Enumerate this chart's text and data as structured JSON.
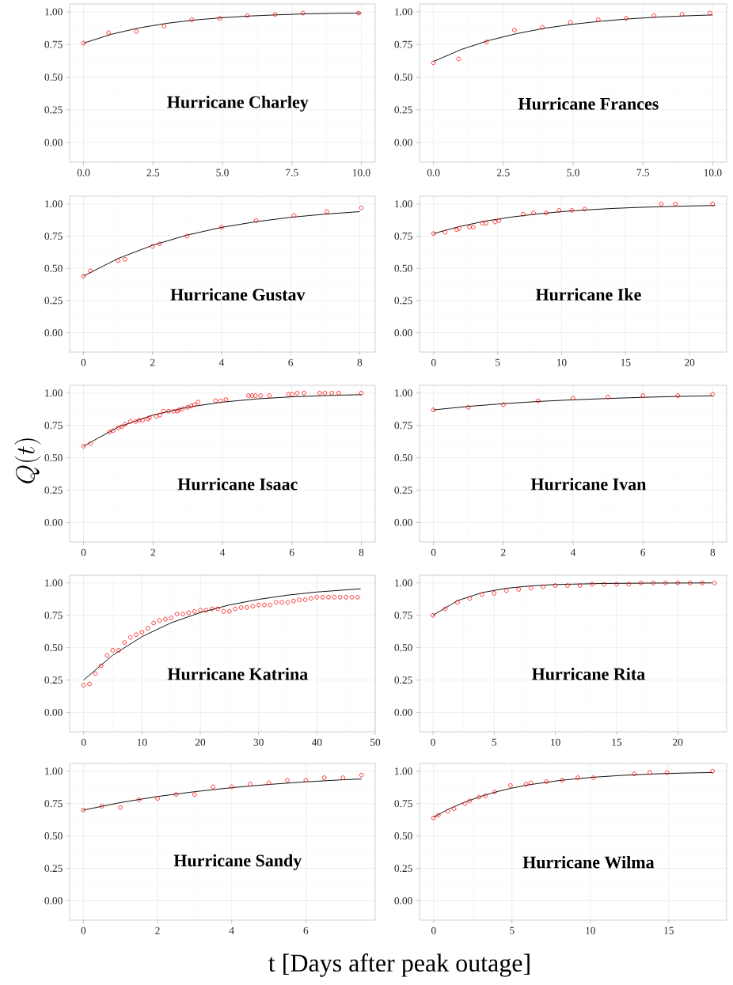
{
  "chart_data": [
    {
      "type": "scatter",
      "title": "Hurricane Charley",
      "grid": true,
      "marker": "circle",
      "xlim": [
        -0.5,
        10.5
      ],
      "ylim": [
        -0.15,
        1.06
      ],
      "xticks": [
        {
          "value": 0,
          "label": "0.0"
        },
        {
          "value": 2.5,
          "label": "2.5"
        },
        {
          "value": 5,
          "label": "5.0"
        },
        {
          "value": 7.5,
          "label": "7.5"
        },
        {
          "value": 10,
          "label": "10.0"
        }
      ],
      "yticks": [
        {
          "value": 0,
          "label": "0.00"
        },
        {
          "value": 0.25,
          "label": "0.25"
        },
        {
          "value": 0.5,
          "label": "0.50"
        },
        {
          "value": 0.75,
          "label": "0.75"
        },
        {
          "value": 1,
          "label": "1.00"
        }
      ],
      "series": [
        {
          "color": "#ff0000",
          "x": [
            0,
            0.9,
            1.9,
            2.9,
            3.9,
            4.9,
            5.9,
            6.9,
            7.9,
            9.9
          ],
          "values": [
            0.76,
            0.84,
            0.85,
            0.89,
            0.94,
            0.95,
            0.97,
            0.98,
            0.99,
            0.99
          ]
        },
        {
          "type": "line",
          "marker": "none",
          "color": "#000000",
          "x": [
            0,
            1,
            2,
            3,
            4,
            5,
            6,
            7,
            8,
            9,
            10
          ],
          "values": [
            0.76,
            0.828,
            0.877,
            0.912,
            0.937,
            0.955,
            0.968,
            0.977,
            0.984,
            0.988,
            0.99
          ]
        }
      ]
    },
    {
      "type": "scatter",
      "title": "Hurricane Frances",
      "grid": true,
      "marker": "circle",
      "xlim": [
        -0.5,
        10.5
      ],
      "ylim": [
        -0.15,
        1.06
      ],
      "xticks": [
        {
          "value": 0,
          "label": "0.0"
        },
        {
          "value": 2.5,
          "label": "2.5"
        },
        {
          "value": 5,
          "label": "5.0"
        },
        {
          "value": 7.5,
          "label": "7.5"
        },
        {
          "value": 10,
          "label": "10.0"
        }
      ],
      "yticks": [
        {
          "value": 0,
          "label": "0.00"
        },
        {
          "value": 0.25,
          "label": "0.25"
        },
        {
          "value": 0.5,
          "label": "0.50"
        },
        {
          "value": 0.75,
          "label": "0.75"
        },
        {
          "value": 1,
          "label": "1.00"
        }
      ],
      "series": [
        {
          "color": "#ff0000",
          "x": [
            0,
            0.9,
            1.9,
            2.9,
            3.9,
            4.9,
            5.9,
            6.9,
            7.9,
            8.9,
            9.9
          ],
          "values": [
            0.61,
            0.64,
            0.77,
            0.86,
            0.88,
            0.92,
            0.94,
            0.95,
            0.97,
            0.98,
            0.99
          ]
        },
        {
          "type": "line",
          "marker": "none",
          "color": "#000000",
          "x": [
            0,
            1,
            2,
            3,
            4,
            5,
            6,
            7,
            8,
            9,
            10
          ],
          "values": [
            0.62,
            0.712,
            0.782,
            0.834,
            0.875,
            0.905,
            0.928,
            0.946,
            0.959,
            0.969,
            0.976
          ]
        }
      ]
    },
    {
      "type": "scatter",
      "title": "Hurricane Gustav",
      "grid": true,
      "marker": "circle",
      "xlim": [
        -0.4,
        8.45
      ],
      "ylim": [
        -0.15,
        1.06
      ],
      "xticks": [
        {
          "value": 0,
          "label": "0"
        },
        {
          "value": 2,
          "label": "2"
        },
        {
          "value": 4,
          "label": "4"
        },
        {
          "value": 6,
          "label": "6"
        },
        {
          "value": 8,
          "label": "8"
        }
      ],
      "yticks": [
        {
          "value": 0,
          "label": "0.00"
        },
        {
          "value": 0.25,
          "label": "0.25"
        },
        {
          "value": 0.5,
          "label": "0.50"
        },
        {
          "value": 0.75,
          "label": "0.75"
        },
        {
          "value": 1,
          "label": "1.00"
        }
      ],
      "series": [
        {
          "color": "#ff0000",
          "x": [
            0,
            0.2,
            1.0,
            1.2,
            2.0,
            2.2,
            3.0,
            4.0,
            5.0,
            6.1,
            7.05,
            8.05
          ],
          "values": [
            0.44,
            0.48,
            0.56,
            0.57,
            0.67,
            0.69,
            0.75,
            0.82,
            0.87,
            0.91,
            0.94,
            0.97
          ]
        },
        {
          "type": "line",
          "marker": "none",
          "color": "#000000",
          "x": [
            0,
            1,
            2,
            3,
            4,
            5,
            6,
            7,
            8
          ],
          "values": [
            0.44,
            0.576,
            0.679,
            0.758,
            0.818,
            0.862,
            0.896,
            0.921,
            0.94
          ]
        }
      ]
    },
    {
      "type": "scatter",
      "title": "Hurricane Ike",
      "grid": true,
      "marker": "circle",
      "xlim": [
        -1.1,
        22.9
      ],
      "ylim": [
        -0.15,
        1.06
      ],
      "xticks": [
        {
          "value": 0,
          "label": "0"
        },
        {
          "value": 5,
          "label": "5"
        },
        {
          "value": 10,
          "label": "10"
        },
        {
          "value": 15,
          "label": "15"
        },
        {
          "value": 20,
          "label": "20"
        }
      ],
      "yticks": [
        {
          "value": 0,
          "label": "0.00"
        },
        {
          "value": 0.25,
          "label": "0.25"
        },
        {
          "value": 0.5,
          "label": "0.50"
        },
        {
          "value": 0.75,
          "label": "0.75"
        },
        {
          "value": 1,
          "label": "1.00"
        }
      ],
      "series": [
        {
          "color": "#ff0000",
          "x": [
            0,
            0.9,
            1.8,
            2.0,
            2.8,
            3.1,
            3.8,
            4.1,
            4.8,
            5.1,
            7.0,
            7.8,
            8.8,
            9.8,
            10.8,
            11.8,
            17.8,
            18.9,
            21.8
          ],
          "values": [
            0.77,
            0.78,
            0.8,
            0.81,
            0.82,
            0.82,
            0.85,
            0.85,
            0.86,
            0.87,
            0.92,
            0.93,
            0.93,
            0.95,
            0.95,
            0.96,
            1.0,
            1.0,
            1.0
          ]
        },
        {
          "type": "line",
          "marker": "none",
          "color": "#000000",
          "x": [
            0,
            2,
            4,
            6,
            8,
            10,
            12,
            14,
            16,
            18,
            20,
            22
          ],
          "values": [
            0.77,
            0.824,
            0.866,
            0.897,
            0.921,
            0.94,
            0.954,
            0.965,
            0.973,
            0.979,
            0.984,
            0.988
          ]
        }
      ]
    },
    {
      "type": "scatter",
      "title": "Hurricane Isaac",
      "ylabel": "Q(t)",
      "grid": true,
      "marker": "circle",
      "xlim": [
        -0.4,
        8.4
      ],
      "ylim": [
        -0.15,
        1.06
      ],
      "xticks": [
        {
          "value": 0,
          "label": "0"
        },
        {
          "value": 2,
          "label": "2"
        },
        {
          "value": 4,
          "label": "4"
        },
        {
          "value": 6,
          "label": "6"
        },
        {
          "value": 8,
          "label": "8"
        }
      ],
      "yticks": [
        {
          "value": 0,
          "label": "0.00"
        },
        {
          "value": 0.25,
          "label": "0.25"
        },
        {
          "value": 0.5,
          "label": "0.50"
        },
        {
          "value": 0.75,
          "label": "0.75"
        },
        {
          "value": 1,
          "label": "1.00"
        }
      ],
      "series": [
        {
          "color": "#ff0000",
          "x": [
            0,
            0.2,
            0.75,
            0.85,
            1.0,
            1.1,
            1.2,
            1.35,
            1.5,
            1.6,
            1.7,
            1.85,
            1.9,
            2.1,
            2.2,
            2.3,
            2.45,
            2.6,
            2.7,
            2.75,
            2.85,
            3.0,
            3.1,
            3.2,
            3.3,
            3.8,
            3.95,
            4.1,
            4.75,
            4.85,
            4.95,
            5.1,
            5.35,
            5.9,
            6.0,
            6.15,
            6.35,
            6.8,
            6.95,
            7.15,
            7.35,
            8.0
          ],
          "values": [
            0.59,
            0.61,
            0.7,
            0.71,
            0.73,
            0.74,
            0.76,
            0.78,
            0.78,
            0.79,
            0.79,
            0.8,
            0.81,
            0.82,
            0.83,
            0.86,
            0.86,
            0.86,
            0.86,
            0.87,
            0.88,
            0.89,
            0.9,
            0.91,
            0.93,
            0.94,
            0.94,
            0.95,
            0.98,
            0.98,
            0.98,
            0.98,
            0.98,
            0.99,
            0.99,
            1.0,
            1.0,
            1.0,
            1.0,
            1.0,
            1.0,
            1.0
          ]
        },
        {
          "type": "line",
          "marker": "none",
          "color": "#000000",
          "x": [
            0,
            1,
            2,
            3,
            4,
            5,
            6,
            7,
            8
          ],
          "values": [
            0.59,
            0.737,
            0.83,
            0.891,
            0.93,
            0.955,
            0.971,
            0.981,
            0.988
          ]
        }
      ]
    },
    {
      "type": "scatter",
      "title": "Hurricane Ivan",
      "grid": true,
      "marker": "circle",
      "xlim": [
        -0.4,
        8.4
      ],
      "ylim": [
        -0.15,
        1.06
      ],
      "xticks": [
        {
          "value": 0,
          "label": "0"
        },
        {
          "value": 2,
          "label": "2"
        },
        {
          "value": 4,
          "label": "4"
        },
        {
          "value": 6,
          "label": "6"
        },
        {
          "value": 8,
          "label": "8"
        }
      ],
      "yticks": [
        {
          "value": 0,
          "label": "0.00"
        },
        {
          "value": 0.25,
          "label": "0.25"
        },
        {
          "value": 0.5,
          "label": "0.50"
        },
        {
          "value": 0.75,
          "label": "0.75"
        },
        {
          "value": 1,
          "label": "1.00"
        }
      ],
      "series": [
        {
          "color": "#ff0000",
          "x": [
            0,
            1,
            2,
            3,
            4,
            5,
            6,
            7,
            8
          ],
          "values": [
            0.87,
            0.89,
            0.91,
            0.94,
            0.96,
            0.97,
            0.98,
            0.98,
            0.99
          ]
        },
        {
          "type": "line",
          "marker": "none",
          "color": "#000000",
          "x": [
            0,
            1,
            2,
            3,
            4,
            5,
            6,
            7,
            8
          ],
          "values": [
            0.87,
            0.897,
            0.918,
            0.935,
            0.948,
            0.958,
            0.967,
            0.974,
            0.979
          ]
        }
      ]
    },
    {
      "type": "scatter",
      "title": "Hurricane Katrina",
      "grid": true,
      "marker": "circle",
      "xlim": [
        -2.4,
        50
      ],
      "ylim": [
        -0.15,
        1.06
      ],
      "xticks": [
        {
          "value": 0,
          "label": "0"
        },
        {
          "value": 10,
          "label": "10"
        },
        {
          "value": 20,
          "label": "20"
        },
        {
          "value": 30,
          "label": "30"
        },
        {
          "value": 40,
          "label": "40"
        },
        {
          "value": 50,
          "label": "50"
        }
      ],
      "yticks": [
        {
          "value": 0,
          "label": "0.00"
        },
        {
          "value": 0.25,
          "label": "0.25"
        },
        {
          "value": 0.5,
          "label": "0.50"
        },
        {
          "value": 0.75,
          "label": "0.75"
        },
        {
          "value": 1,
          "label": "1.00"
        }
      ],
      "series": [
        {
          "color": "#ff0000",
          "x": [
            0,
            1,
            2,
            3,
            4,
            5,
            6,
            7,
            8,
            9,
            10,
            11,
            12,
            13,
            14,
            15,
            16,
            17,
            18,
            19,
            20,
            21,
            22,
            23,
            24,
            25,
            26,
            27,
            28,
            29,
            30,
            31,
            32,
            33,
            34,
            35,
            36,
            37,
            38,
            39,
            40,
            41,
            42,
            43,
            44,
            45,
            46,
            47
          ],
          "values": [
            0.21,
            0.22,
            0.3,
            0.36,
            0.44,
            0.48,
            0.48,
            0.54,
            0.58,
            0.6,
            0.62,
            0.65,
            0.69,
            0.71,
            0.72,
            0.73,
            0.76,
            0.76,
            0.77,
            0.78,
            0.79,
            0.79,
            0.8,
            0.8,
            0.78,
            0.78,
            0.8,
            0.81,
            0.81,
            0.82,
            0.83,
            0.83,
            0.83,
            0.85,
            0.85,
            0.85,
            0.86,
            0.87,
            0.87,
            0.88,
            0.89,
            0.89,
            0.89,
            0.89,
            0.89,
            0.89,
            0.89,
            0.89
          ]
        },
        {
          "type": "line",
          "marker": "none",
          "color": "#000000",
          "x": [
            0,
            5,
            10,
            15,
            20,
            25,
            30,
            35,
            40,
            47.5
          ],
          "values": [
            0.25,
            0.442,
            0.585,
            0.692,
            0.771,
            0.83,
            0.873,
            0.906,
            0.93,
            0.955
          ]
        }
      ]
    },
    {
      "type": "scatter",
      "title": "Hurricane Rita",
      "grid": true,
      "marker": "circle",
      "xlim": [
        -1.1,
        24
      ],
      "ylim": [
        -0.15,
        1.06
      ],
      "xticks": [
        {
          "value": 0,
          "label": "0"
        },
        {
          "value": 5,
          "label": "5"
        },
        {
          "value": 10,
          "label": "10"
        },
        {
          "value": 15,
          "label": "15"
        },
        {
          "value": 20,
          "label": "20"
        }
      ],
      "yticks": [
        {
          "value": 0,
          "label": "0.00"
        },
        {
          "value": 0.25,
          "label": "0.25"
        },
        {
          "value": 0.5,
          "label": "0.50"
        },
        {
          "value": 0.75,
          "label": "0.75"
        },
        {
          "value": 1,
          "label": "1.00"
        }
      ],
      "series": [
        {
          "color": "#ff0000",
          "x": [
            0,
            1,
            2,
            3,
            4,
            5,
            6,
            7,
            8,
            9,
            10,
            11,
            12,
            13,
            14,
            15,
            16,
            17,
            18,
            19,
            20,
            21,
            22,
            23
          ],
          "values": [
            0.75,
            0.8,
            0.85,
            0.88,
            0.91,
            0.92,
            0.94,
            0.95,
            0.96,
            0.97,
            0.98,
            0.98,
            0.98,
            0.99,
            0.99,
            0.99,
            0.99,
            1.0,
            1.0,
            1.0,
            1.0,
            1.0,
            1.0,
            1.0
          ]
        },
        {
          "type": "line",
          "marker": "none",
          "color": "#000000",
          "x": [
            0,
            2,
            4,
            6,
            8,
            10,
            14,
            18,
            22.8
          ],
          "values": [
            0.75,
            0.863,
            0.925,
            0.959,
            0.977,
            0.988,
            0.996,
            0.999,
            1.0
          ]
        }
      ]
    },
    {
      "type": "scatter",
      "title": "Hurricane Sandy",
      "xlabel": "t [Days after peak outage]",
      "grid": true,
      "marker": "circle",
      "xlim": [
        -0.37,
        7.87
      ],
      "ylim": [
        -0.15,
        1.06
      ],
      "xticks": [
        {
          "value": 0,
          "label": "0"
        },
        {
          "value": 2,
          "label": "2"
        },
        {
          "value": 4,
          "label": "4"
        },
        {
          "value": 6,
          "label": "6"
        }
      ],
      "yticks": [
        {
          "value": 0,
          "label": "0.00"
        },
        {
          "value": 0.25,
          "label": "0.25"
        },
        {
          "value": 0.5,
          "label": "0.50"
        },
        {
          "value": 0.75,
          "label": "0.75"
        },
        {
          "value": 1,
          "label": "1.00"
        }
      ],
      "series": [
        {
          "color": "#ff0000",
          "x": [
            0,
            0.5,
            1,
            1.5,
            2,
            2.5,
            3,
            3.5,
            4,
            4.5,
            5,
            5.5,
            6,
            6.5,
            7,
            7.5
          ],
          "values": [
            0.7,
            0.73,
            0.72,
            0.78,
            0.79,
            0.82,
            0.82,
            0.88,
            0.88,
            0.9,
            0.91,
            0.93,
            0.93,
            0.95,
            0.95,
            0.97
          ]
        },
        {
          "type": "line",
          "marker": "none",
          "color": "#000000",
          "x": [
            0,
            1,
            2,
            3,
            4,
            5,
            6,
            7,
            7.5
          ],
          "values": [
            0.7,
            0.758,
            0.805,
            0.842,
            0.873,
            0.898,
            0.918,
            0.934,
            0.94
          ]
        }
      ]
    },
    {
      "type": "scatter",
      "title": "Hurricane Wilma",
      "grid": true,
      "marker": "circle",
      "xlim": [
        -0.9,
        18.7
      ],
      "ylim": [
        -0.15,
        1.06
      ],
      "xticks": [
        {
          "value": 0,
          "label": "0"
        },
        {
          "value": 5,
          "label": "5"
        },
        {
          "value": 10,
          "label": "10"
        },
        {
          "value": 15,
          "label": "15"
        }
      ],
      "yticks": [
        {
          "value": 0,
          "label": "0.00"
        },
        {
          "value": 0.25,
          "label": "0.25"
        },
        {
          "value": 0.5,
          "label": "0.50"
        },
        {
          "value": 0.75,
          "label": "0.75"
        },
        {
          "value": 1,
          "label": "1.00"
        }
      ],
      "series": [
        {
          "color": "#ff0000",
          "x": [
            0,
            0.3,
            0.9,
            1.3,
            2.0,
            2.3,
            2.9,
            3.3,
            3.9,
            4.9,
            5.9,
            6.2,
            7.2,
            8.2,
            9.2,
            10.2,
            12.8,
            13.8,
            14.9,
            17.8
          ],
          "values": [
            0.64,
            0.66,
            0.69,
            0.71,
            0.75,
            0.77,
            0.8,
            0.81,
            0.84,
            0.89,
            0.9,
            0.91,
            0.92,
            0.93,
            0.95,
            0.95,
            0.98,
            0.99,
            0.99,
            1.0
          ]
        },
        {
          "type": "line",
          "marker": "none",
          "color": "#000000",
          "x": [
            0,
            1,
            2,
            3,
            4,
            5,
            6,
            8,
            10,
            12,
            14,
            16,
            17.8
          ],
          "values": [
            0.645,
            0.71,
            0.762,
            0.805,
            0.841,
            0.87,
            0.894,
            0.928,
            0.952,
            0.968,
            0.979,
            0.986,
            0.99
          ]
        }
      ]
    }
  ]
}
